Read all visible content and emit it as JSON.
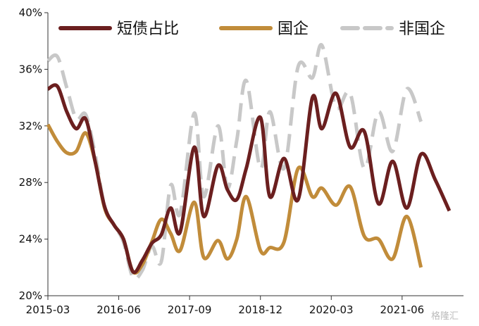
{
  "chart_data": {
    "type": "line",
    "title": "",
    "xlabel": "",
    "ylabel": "",
    "ylim": [
      0.2,
      0.4
    ],
    "y_ticks": [
      0.2,
      0.24,
      0.28,
      0.32,
      0.36,
      0.4
    ],
    "y_tick_labels": [
      "20%",
      "24%",
      "28%",
      "32%",
      "36%",
      "40%"
    ],
    "x_range": [
      "2015-03",
      "2022-07"
    ],
    "x_tick_labels": [
      "2015-03",
      "2016-06",
      "2017-09",
      "2018-12",
      "2020-03",
      "2021-06"
    ],
    "legend_position": "top",
    "grid": false,
    "series": [
      {
        "name": "短债占比",
        "color": "#6b1f1f",
        "style": "solid",
        "points": [
          [
            "2015-03",
            0.346
          ],
          [
            "2015-05",
            0.348
          ],
          [
            "2015-07",
            0.33
          ],
          [
            "2015-09",
            0.318
          ],
          [
            "2015-11",
            0.325
          ],
          [
            "2016-01",
            0.295
          ],
          [
            "2016-03",
            0.263
          ],
          [
            "2016-05",
            0.25
          ],
          [
            "2016-07",
            0.24
          ],
          [
            "2016-09",
            0.217
          ],
          [
            "2016-11",
            0.225
          ],
          [
            "2017-01",
            0.237
          ],
          [
            "2017-03",
            0.243
          ],
          [
            "2017-05",
            0.262
          ],
          [
            "2017-07",
            0.245
          ],
          [
            "2017-10",
            0.305
          ],
          [
            "2017-12",
            0.256
          ],
          [
            "2018-03",
            0.292
          ],
          [
            "2018-05",
            0.275
          ],
          [
            "2018-07",
            0.268
          ],
          [
            "2018-09",
            0.29
          ],
          [
            "2018-12",
            0.326
          ],
          [
            "2019-02",
            0.27
          ],
          [
            "2019-05",
            0.297
          ],
          [
            "2019-08",
            0.268
          ],
          [
            "2019-11",
            0.34
          ],
          [
            "2020-01",
            0.318
          ],
          [
            "2020-04",
            0.343
          ],
          [
            "2020-07",
            0.305
          ],
          [
            "2020-10",
            0.316
          ],
          [
            "2021-01",
            0.265
          ],
          [
            "2021-04",
            0.295
          ],
          [
            "2021-07",
            0.262
          ],
          [
            "2021-10",
            0.3
          ],
          [
            "2022-01",
            0.282
          ],
          [
            "2022-04",
            0.26
          ]
        ]
      },
      {
        "name": "国企",
        "color": "#c18c3a",
        "style": "solid",
        "points": [
          [
            "2015-03",
            0.321
          ],
          [
            "2015-05",
            0.309
          ],
          [
            "2015-07",
            0.301
          ],
          [
            "2015-09",
            0.302
          ],
          [
            "2015-11",
            0.315
          ],
          [
            "2016-01",
            0.295
          ],
          [
            "2016-03",
            0.262
          ],
          [
            "2016-05",
            0.25
          ],
          [
            "2016-07",
            0.24
          ],
          [
            "2016-09",
            0.217
          ],
          [
            "2016-11",
            0.222
          ],
          [
            "2017-01",
            0.238
          ],
          [
            "2017-03",
            0.254
          ],
          [
            "2017-05",
            0.244
          ],
          [
            "2017-07",
            0.232
          ],
          [
            "2017-10",
            0.266
          ],
          [
            "2017-12",
            0.227
          ],
          [
            "2018-03",
            0.239
          ],
          [
            "2018-05",
            0.226
          ],
          [
            "2018-07",
            0.24
          ],
          [
            "2018-09",
            0.27
          ],
          [
            "2018-12",
            0.232
          ],
          [
            "2019-02",
            0.234
          ],
          [
            "2019-05",
            0.238
          ],
          [
            "2019-08",
            0.29
          ],
          [
            "2019-11",
            0.27
          ],
          [
            "2020-01",
            0.276
          ],
          [
            "2020-04",
            0.264
          ],
          [
            "2020-07",
            0.277
          ],
          [
            "2020-10",
            0.242
          ],
          [
            "2021-01",
            0.24
          ],
          [
            "2021-04",
            0.226
          ],
          [
            "2021-07",
            0.256
          ],
          [
            "2021-10",
            0.22
          ]
        ]
      },
      {
        "name": "非国企",
        "color": "#c8c8c8",
        "style": "dashed",
        "points": [
          [
            "2015-03",
            0.366
          ],
          [
            "2015-05",
            0.369
          ],
          [
            "2015-07",
            0.347
          ],
          [
            "2015-09",
            0.325
          ],
          [
            "2015-11",
            0.328
          ],
          [
            "2016-01",
            0.3
          ],
          [
            "2016-03",
            0.263
          ],
          [
            "2016-05",
            0.25
          ],
          [
            "2016-07",
            0.238
          ],
          [
            "2016-09",
            0.213
          ],
          [
            "2016-11",
            0.218
          ],
          [
            "2017-01",
            0.235
          ],
          [
            "2017-03",
            0.224
          ],
          [
            "2017-05",
            0.278
          ],
          [
            "2017-07",
            0.258
          ],
          [
            "2017-10",
            0.329
          ],
          [
            "2017-12",
            0.27
          ],
          [
            "2018-03",
            0.32
          ],
          [
            "2018-05",
            0.276
          ],
          [
            "2018-07",
            0.31
          ],
          [
            "2018-09",
            0.352
          ],
          [
            "2018-12",
            0.29
          ],
          [
            "2019-02",
            0.33
          ],
          [
            "2019-05",
            0.29
          ],
          [
            "2019-08",
            0.362
          ],
          [
            "2019-11",
            0.354
          ],
          [
            "2020-01",
            0.377
          ],
          [
            "2020-04",
            0.333
          ],
          [
            "2020-07",
            0.343
          ],
          [
            "2020-10",
            0.29
          ],
          [
            "2021-01",
            0.33
          ],
          [
            "2021-04",
            0.302
          ],
          [
            "2021-07",
            0.346
          ],
          [
            "2021-10",
            0.323
          ]
        ]
      }
    ]
  },
  "watermark": "格隆汇"
}
